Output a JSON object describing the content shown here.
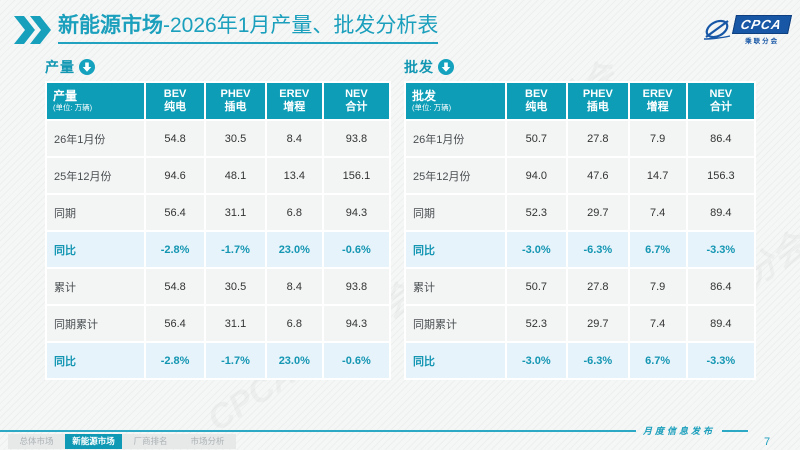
{
  "header": {
    "title_bold": "新能源市场",
    "title_rest": "-2026年1月产量、批发分析表",
    "logo": {
      "text": "CPCA",
      "subtext": "乘联分会"
    }
  },
  "icons": {
    "double_chevron": "❯❯",
    "section_arrow": "↓"
  },
  "colors": {
    "teal_header": "#0D9DB7",
    "teal_title": "#1A9FBC",
    "highlight_row_bg": "#E7F3FA",
    "highlight_text": "#1496B3",
    "logo_blue": "#1757A6"
  },
  "tables": [
    {
      "section_label": "产量",
      "head": {
        "label": "产量",
        "unit": "(单位: 万辆)"
      },
      "columns": [
        {
          "en": "BEV",
          "zh": "纯电"
        },
        {
          "en": "PHEV",
          "zh": "插电"
        },
        {
          "en": "EREV",
          "zh": "增程"
        },
        {
          "en": "NEV",
          "zh": "合计"
        }
      ],
      "rows": [
        {
          "label": "26年1月份",
          "values": [
            "54.8",
            "30.5",
            "8.4",
            "93.8"
          ],
          "highlight": false
        },
        {
          "label": "25年12月份",
          "values": [
            "94.6",
            "48.1",
            "13.4",
            "156.1"
          ],
          "highlight": false
        },
        {
          "label": "同期",
          "values": [
            "56.4",
            "31.1",
            "6.8",
            "94.3"
          ],
          "highlight": false
        },
        {
          "label": "同比",
          "values": [
            "-2.8%",
            "-1.7%",
            "23.0%",
            "-0.6%"
          ],
          "highlight": true
        },
        {
          "label": "累计",
          "values": [
            "54.8",
            "30.5",
            "8.4",
            "93.8"
          ],
          "highlight": false
        },
        {
          "label": "同期累计",
          "values": [
            "56.4",
            "31.1",
            "6.8",
            "94.3"
          ],
          "highlight": false
        },
        {
          "label": "同比",
          "values": [
            "-2.8%",
            "-1.7%",
            "23.0%",
            "-0.6%"
          ],
          "highlight": true
        }
      ]
    },
    {
      "section_label": "批发",
      "head": {
        "label": "批发",
        "unit": "(单位: 万辆)"
      },
      "columns": [
        {
          "en": "BEV",
          "zh": "纯电"
        },
        {
          "en": "PHEV",
          "zh": "插电"
        },
        {
          "en": "EREV",
          "zh": "增程"
        },
        {
          "en": "NEV",
          "zh": "合计"
        }
      ],
      "rows": [
        {
          "label": "26年1月份",
          "values": [
            "50.7",
            "27.8",
            "7.9",
            "86.4"
          ],
          "highlight": false
        },
        {
          "label": "25年12月份",
          "values": [
            "94.0",
            "47.6",
            "14.7",
            "156.3"
          ],
          "highlight": false
        },
        {
          "label": "同期",
          "values": [
            "52.3",
            "29.7",
            "7.4",
            "89.4"
          ],
          "highlight": false
        },
        {
          "label": "同比",
          "values": [
            "-3.0%",
            "-6.3%",
            "6.7%",
            "-3.3%"
          ],
          "highlight": true
        },
        {
          "label": "累计",
          "values": [
            "50.7",
            "27.8",
            "7.9",
            "86.4"
          ],
          "highlight": false
        },
        {
          "label": "同期累计",
          "values": [
            "52.3",
            "29.7",
            "7.4",
            "89.4"
          ],
          "highlight": false
        },
        {
          "label": "同比",
          "values": [
            "-3.0%",
            "-6.3%",
            "6.7%",
            "-3.3%"
          ],
          "highlight": true
        }
      ]
    }
  ],
  "footer": {
    "tabs": [
      {
        "label": "总体市场",
        "active": false
      },
      {
        "label": "新能源市场",
        "active": true
      },
      {
        "label": "厂商排名",
        "active": false
      },
      {
        "label": "市场分析",
        "active": false
      }
    ],
    "release_label": "月度信息发布",
    "page_number": "7"
  },
  "watermark_text": "CPCA 乘联分会"
}
